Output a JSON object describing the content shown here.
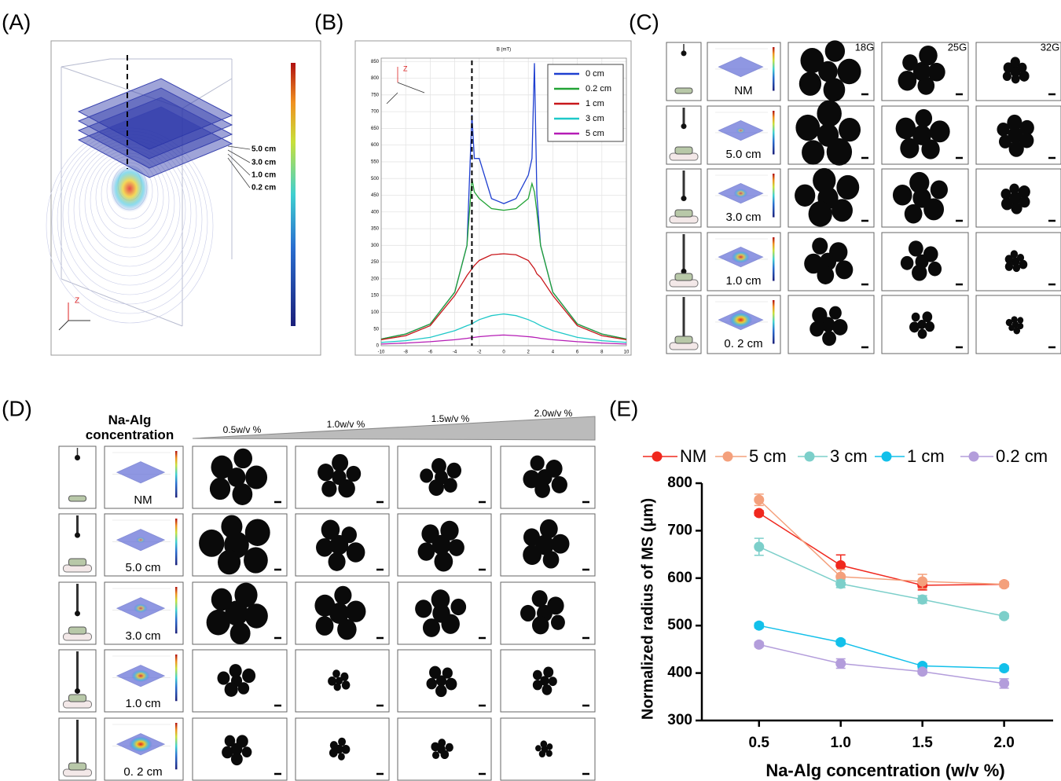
{
  "panel_labels": [
    "(A)",
    "(B)",
    "(C)",
    "(D)",
    "(E)"
  ],
  "panel_a": {
    "distance_labels": [
      "5.0 cm",
      "3.0 cm",
      "1.0 cm",
      "0.2 cm"
    ],
    "axis_label": "Z"
  },
  "panel_c": {
    "column_labels": [
      "18G",
      "25G",
      "32G"
    ],
    "row_labels": [
      "NM",
      "5.0 cm",
      "3.0 cm",
      "1.0 cm",
      "0. 2 cm"
    ]
  },
  "panel_d": {
    "title": "Na-Alg concentration",
    "column_labels": [
      "0.5w/v %",
      "1.0w/v %",
      "1.5w/v %",
      "2.0w/v %"
    ],
    "row_labels": [
      "NM",
      "5.0 cm",
      "3.0 cm",
      "1.0 cm",
      "0. 2 cm"
    ]
  },
  "chart_data": [
    {
      "type": "line",
      "title": "B (mT)",
      "x": [
        -10,
        -8,
        -6,
        -4,
        -3,
        -2.6,
        -2.4,
        -2,
        -1,
        0,
        1,
        2,
        2.3,
        2.5,
        2.7,
        3,
        4,
        6,
        8,
        10
      ],
      "xlim": [
        -10,
        10
      ],
      "xticks": [
        -10,
        -8,
        -6,
        -4,
        -2,
        0,
        2,
        4,
        6,
        8,
        10
      ],
      "ylim": [
        0,
        860
      ],
      "yticks": [
        0,
        50,
        100,
        150,
        200,
        250,
        300,
        350,
        400,
        450,
        500,
        550,
        600,
        650,
        700,
        750,
        800,
        850
      ],
      "grid": true,
      "legend": "upper right",
      "annotations": [
        "Z"
      ],
      "marker_x": -2.6,
      "series": [
        {
          "name": "0 cm",
          "color": "#1f3fd0",
          "values": [
            20,
            35,
            65,
            160,
            300,
            690,
            560,
            560,
            440,
            425,
            440,
            510,
            560,
            845,
            450,
            300,
            160,
            65,
            35,
            20
          ]
        },
        {
          "name": "0.2 cm",
          "color": "#22a336",
          "values": [
            20,
            35,
            65,
            160,
            300,
            500,
            460,
            440,
            410,
            405,
            410,
            440,
            485,
            460,
            400,
            300,
            160,
            65,
            35,
            20
          ]
        },
        {
          "name": "1 cm",
          "color": "#c8171b",
          "values": [
            18,
            30,
            60,
            150,
            210,
            230,
            240,
            255,
            272,
            275,
            272,
            255,
            240,
            230,
            215,
            205,
            150,
            60,
            30,
            18
          ]
        },
        {
          "name": "3 cm",
          "color": "#1ec8c8",
          "values": [
            10,
            15,
            25,
            45,
            60,
            65,
            70,
            78,
            90,
            95,
            90,
            78,
            73,
            70,
            66,
            60,
            45,
            25,
            15,
            10
          ]
        },
        {
          "name": "5 cm",
          "color": "#b51cb5",
          "values": [
            5,
            8,
            12,
            18,
            22,
            24,
            25,
            27,
            30,
            32,
            30,
            27,
            26,
            25,
            24,
            22,
            18,
            12,
            8,
            5
          ]
        }
      ]
    },
    {
      "type": "line",
      "xlabel": "Na-Alg concentration (w/v %)",
      "ylabel": "Normalized radius of MS (μm)",
      "x": [
        0.5,
        1,
        1.5,
        2
      ],
      "xlim": [
        0.15,
        2.3
      ],
      "xticks": [
        0.5,
        {
          "value": 1,
          "label": "1.0"
        },
        1.5,
        {
          "value": 2,
          "label": "2.0"
        }
      ],
      "ylim": [
        300,
        800
      ],
      "yticks": [
        300,
        400,
        500,
        600,
        700,
        800
      ],
      "legend": "top",
      "series": [
        {
          "name": "NM",
          "color": "#f0281e",
          "values": [
            737,
            627,
            585,
            587
          ],
          "errors": [
            5,
            22,
            10,
            5
          ]
        },
        {
          "name": "5 cm",
          "color": "#f4a07c",
          "values": [
            765,
            603,
            593,
            587
          ],
          "errors": [
            12,
            15,
            15,
            5
          ]
        },
        {
          "name": "3 cm",
          "color": "#7ccfca",
          "values": [
            666,
            588,
            555,
            520
          ],
          "errors": [
            18,
            8,
            8,
            5
          ]
        },
        {
          "name": "1 cm",
          "color": "#12c0ea",
          "values": [
            500,
            465,
            415,
            410
          ],
          "errors": [
            5,
            5,
            5,
            5
          ]
        },
        {
          "name": "0.2 cm",
          "color": "#b39ddb",
          "values": [
            460,
            420,
            403,
            378
          ],
          "errors": [
            5,
            10,
            5,
            10
          ]
        }
      ]
    }
  ]
}
